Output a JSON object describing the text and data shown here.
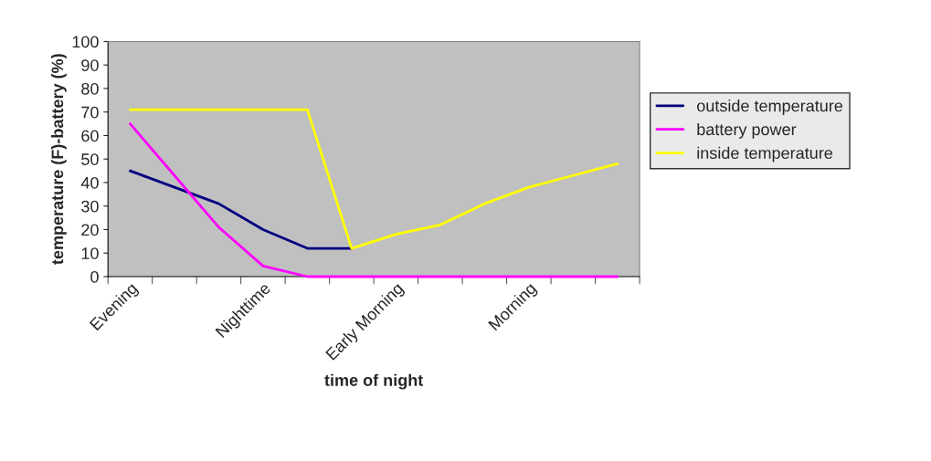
{
  "chart_data": {
    "type": "line",
    "xlabel": "time of night",
    "ylabel": "temperature (F)-battery (%)",
    "categories": [
      "Evening",
      null,
      null,
      "Nighttime",
      null,
      null,
      "Early Morning",
      null,
      null,
      "Morning",
      null,
      null
    ],
    "series": [
      {
        "name": "outside temperature",
        "color": "#000080",
        "values": [
          45,
          38,
          31,
          20,
          12,
          12,
          null,
          null,
          null,
          null,
          null,
          null
        ]
      },
      {
        "name": "battery power",
        "color": "#ff00ff",
        "values": [
          65,
          43,
          21,
          4.5,
          0,
          0,
          0,
          0,
          0,
          0,
          0,
          0
        ]
      },
      {
        "name": "inside temperature",
        "color": "#ffff00",
        "values": [
          71,
          71,
          71,
          71,
          71,
          12,
          18,
          22,
          31,
          38,
          43,
          48
        ]
      }
    ],
    "ylim": [
      0,
      100
    ],
    "yticks": [
      0,
      10,
      20,
      30,
      40,
      50,
      60,
      70,
      80,
      90,
      100
    ],
    "grid": false,
    "legend": "right",
    "marker": "none",
    "line_style": "solid"
  }
}
